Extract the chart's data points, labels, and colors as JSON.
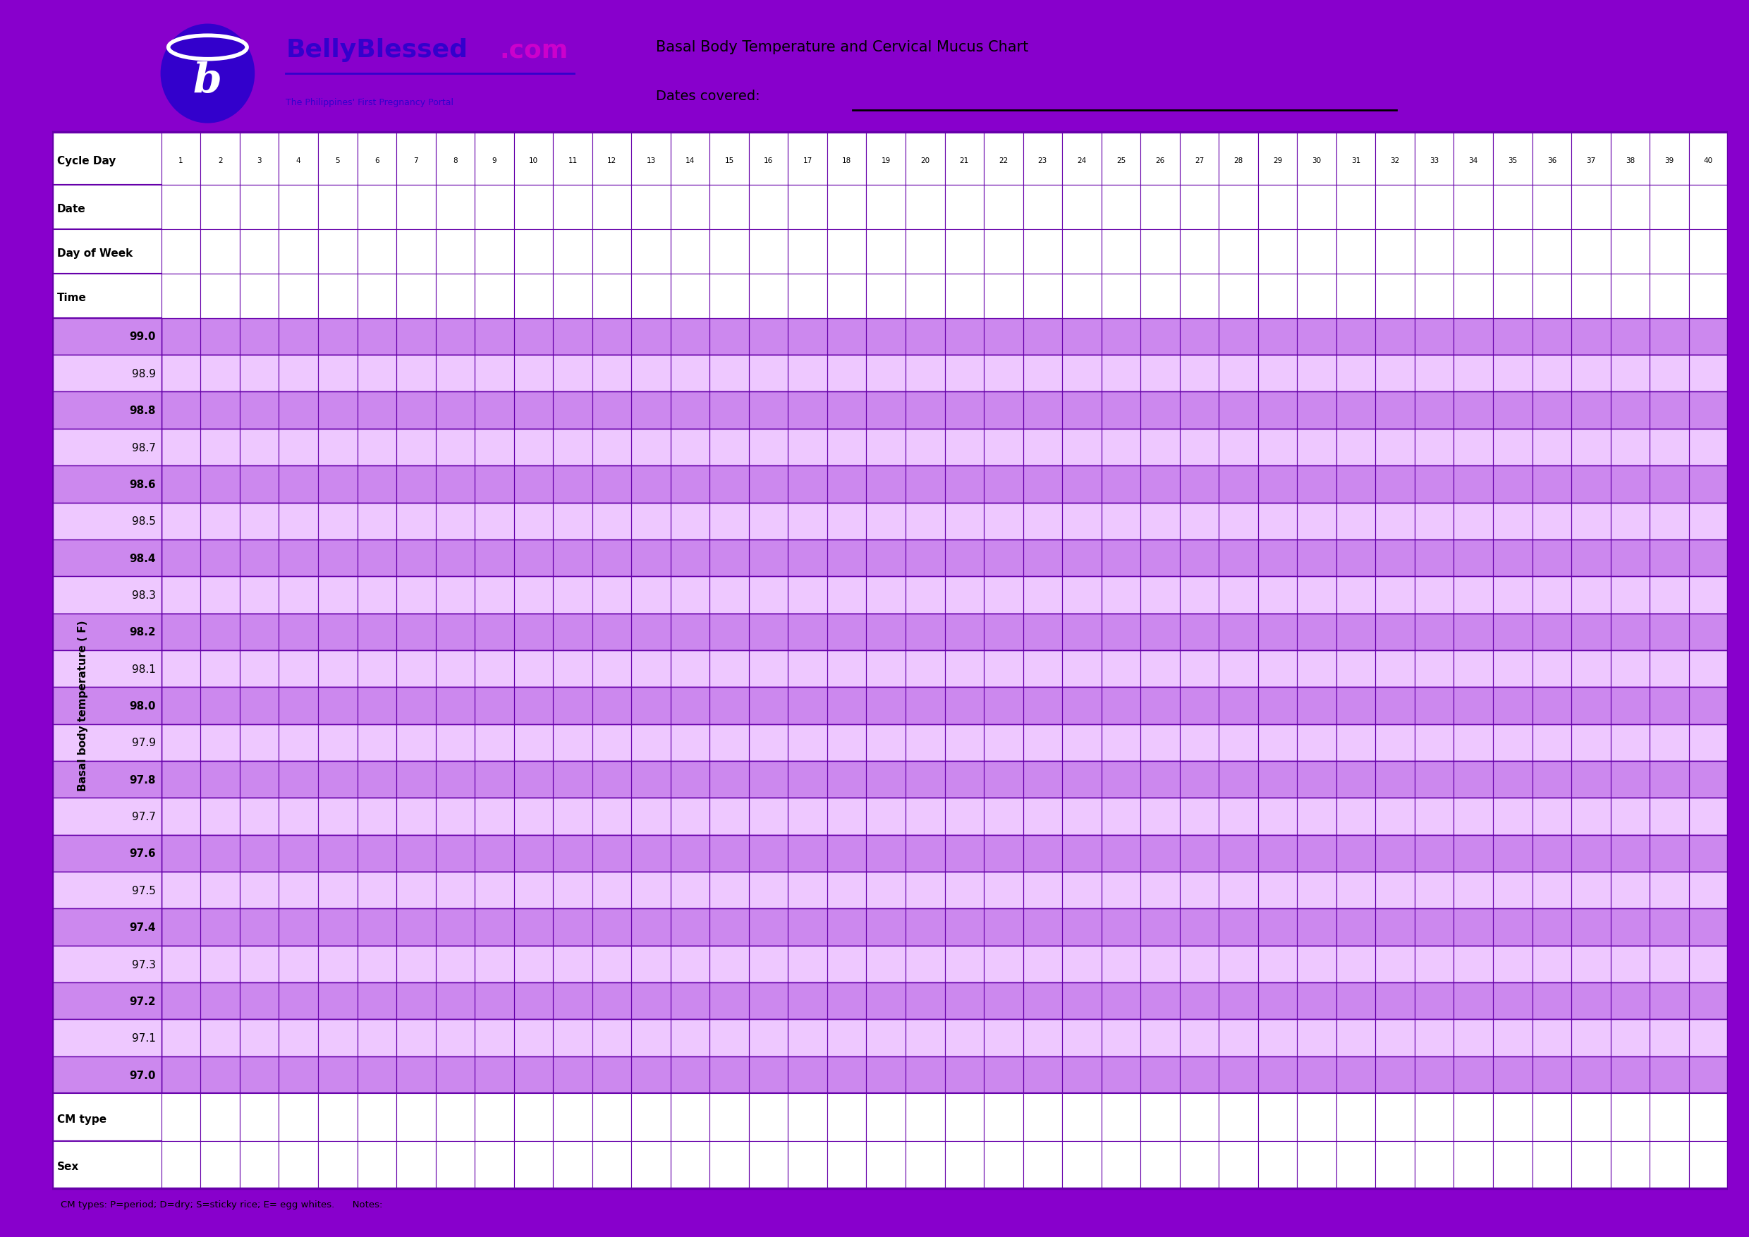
{
  "title1": "Basal Body Temperature and Cervical Mucus Chart",
  "title2": "Dates covered: _______________________________",
  "brand_name_1": "BellyBlessed",
  "brand_name_2": ".com",
  "brand_sub": "The Philippines' First Pregnancy Portal",
  "header_row_labels": [
    "Cycle Day",
    "Date",
    "Day of Week",
    "Time"
  ],
  "cycle_days": [
    1,
    2,
    3,
    4,
    5,
    6,
    7,
    8,
    9,
    10,
    11,
    12,
    13,
    14,
    15,
    16,
    17,
    18,
    19,
    20,
    21,
    22,
    23,
    24,
    25,
    26,
    27,
    28,
    29,
    30,
    31,
    32,
    33,
    34,
    35,
    36,
    37,
    38,
    39,
    40
  ],
  "temp_rows": [
    99.0,
    98.9,
    98.8,
    98.7,
    98.6,
    98.5,
    98.4,
    98.3,
    98.2,
    98.1,
    98.0,
    97.9,
    97.8,
    97.7,
    97.6,
    97.5,
    97.4,
    97.3,
    97.2,
    97.1,
    97.0
  ],
  "footer_row_labels": [
    "CM type",
    "Sex"
  ],
  "footer_note": "CM types: P=period; D=dry; S=sticky rice; E= egg whites.      Notes:",
  "alt_row_color_dark": "#CC88EE",
  "alt_row_color_light": "#EEC8FF",
  "bold_temp_rows": [
    99.0,
    98.8,
    98.6,
    98.4,
    98.2,
    98.0,
    97.8,
    97.6,
    97.4,
    97.2,
    97.0
  ],
  "ylabel": "Basal body temperature ( F)",
  "purple_border": "#8800CC",
  "purple_dark": "#6600AA",
  "purple_grid": "#9933CC",
  "logo_blue": "#3300CC",
  "logo_purple": "#CC00CC"
}
